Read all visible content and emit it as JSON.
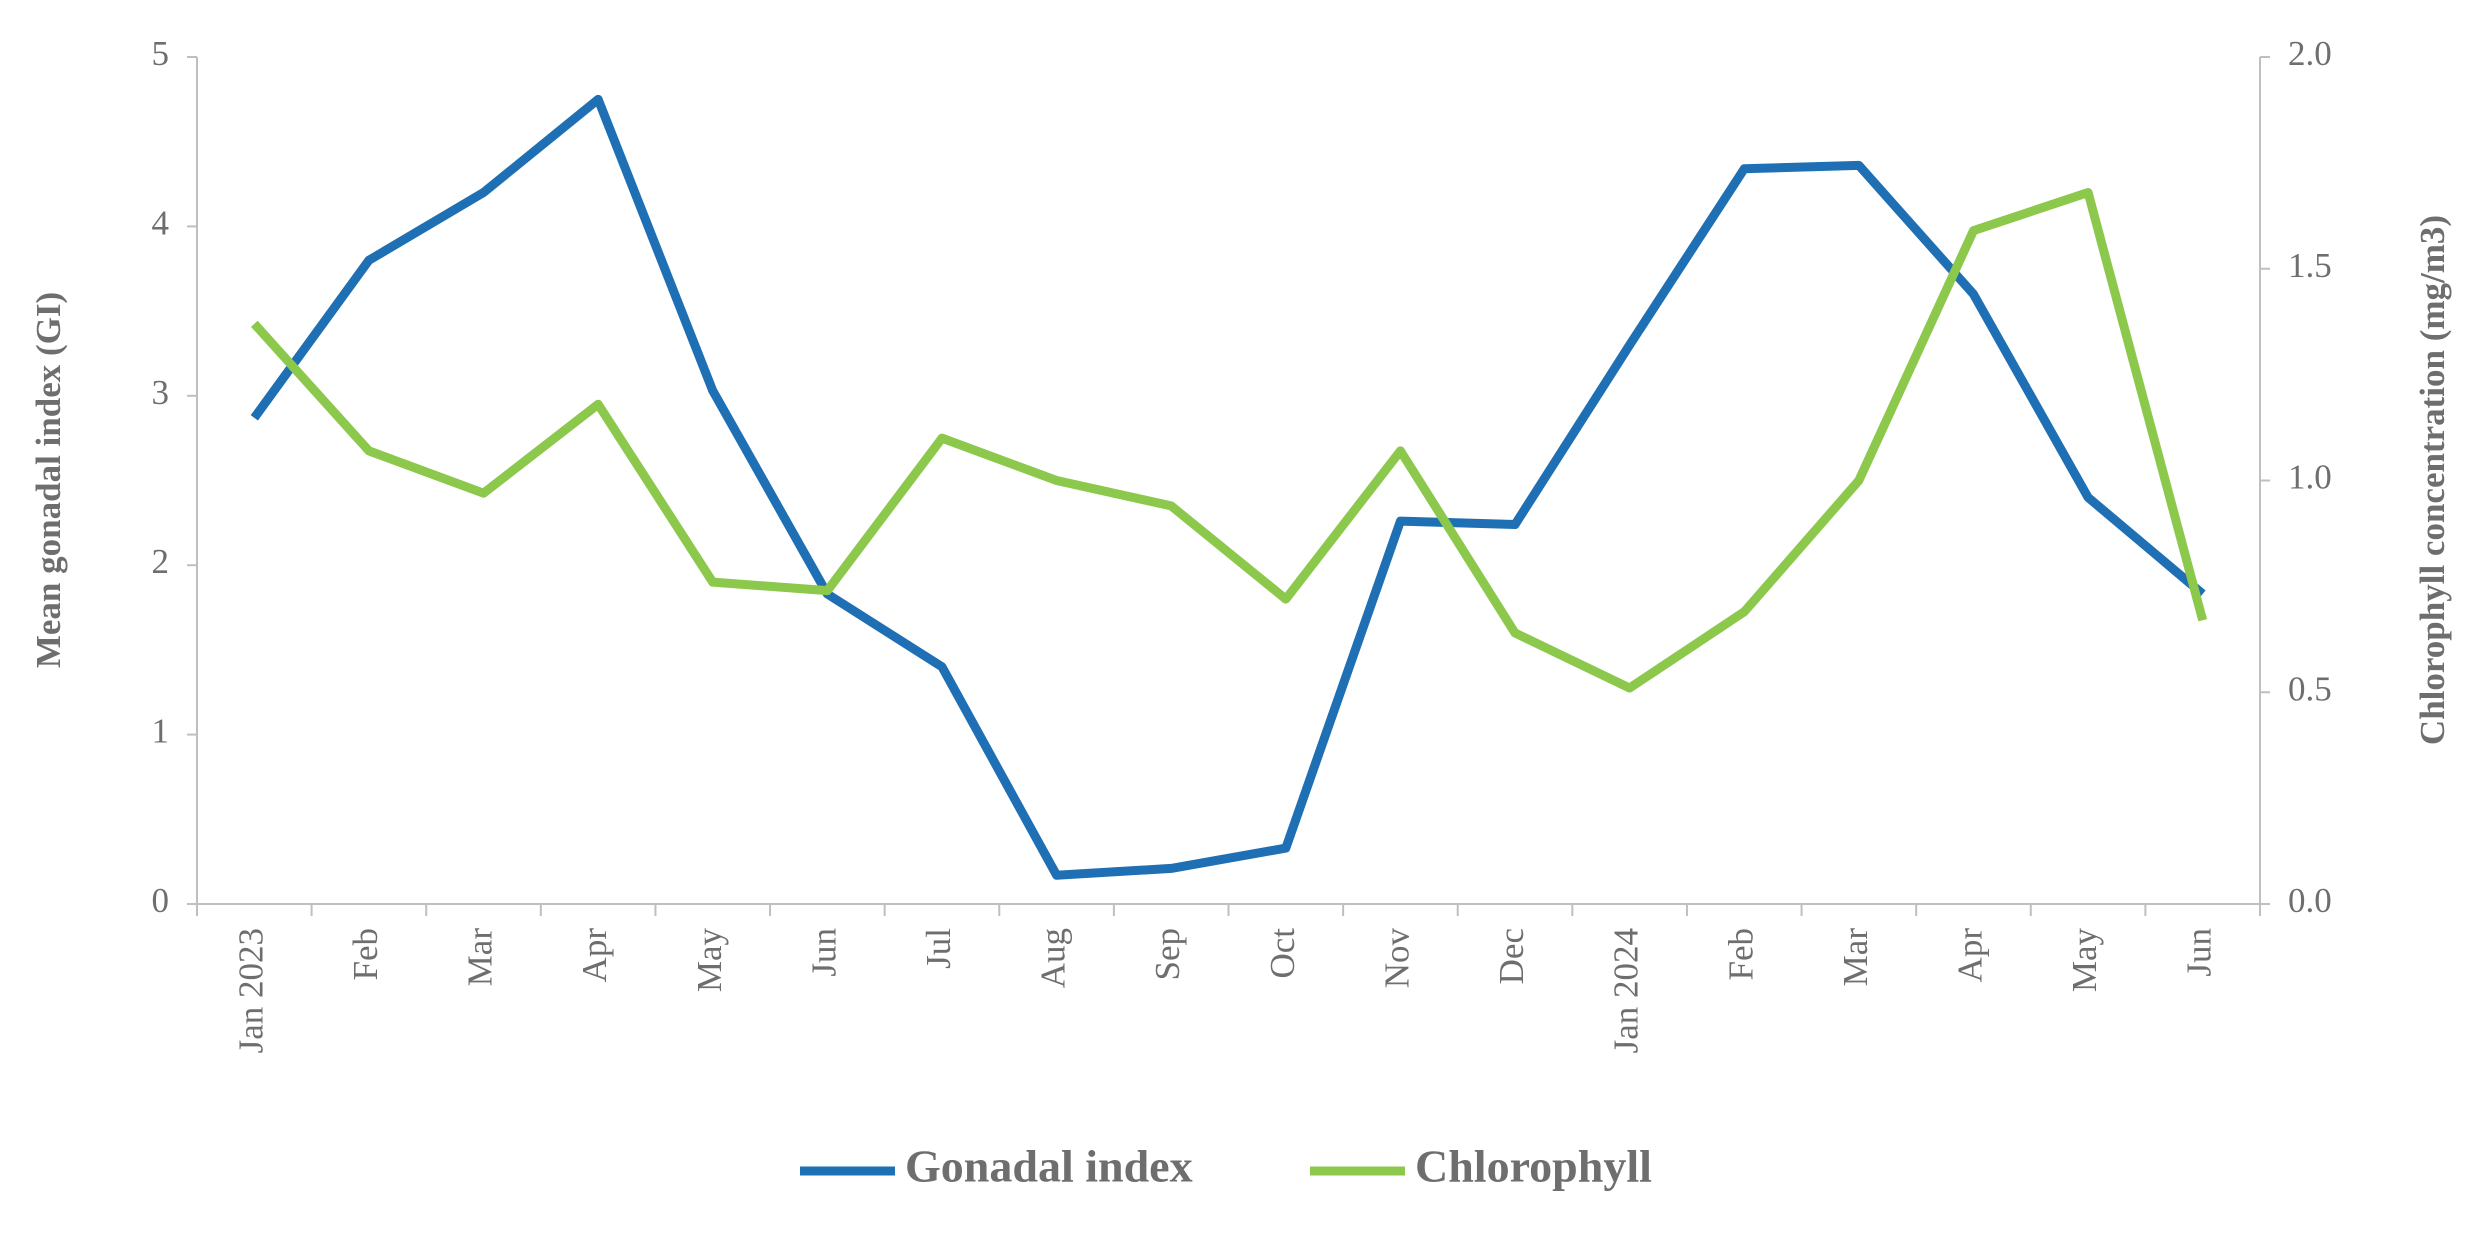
{
  "chart_data": {
    "type": "line",
    "y_label": "Mean gonadal index (GI)",
    "y2_label": "Chlorophyll concentration (mg/m3)",
    "categories": [
      "Jan 2023",
      "Feb",
      "Mar",
      "Apr",
      "May",
      "Jun",
      "Jul",
      "Aug",
      "Sep",
      "Oct",
      "Nov",
      "Dec",
      "Jan 2024",
      "Feb",
      "Mar",
      "Apr",
      "May",
      "Jun"
    ],
    "series": [
      {
        "name": "Gonadal index",
        "color": "#1f6fb4",
        "values": [
          2.87,
          3.8,
          4.2,
          4.75,
          3.03,
          1.83,
          1.4,
          0.17,
          0.21,
          0.33,
          2.26,
          2.24,
          3.3,
          4.34,
          4.36,
          3.6,
          2.4,
          1.83
        ]
      },
      {
        "name": "Chlorophyll",
        "color": "#8cc84b",
        "axis": "y2",
        "values": [
          1.37,
          1.07,
          0.97,
          1.18,
          0.76,
          0.74,
          1.1,
          1.0,
          0.94,
          0.72,
          1.07,
          0.64,
          0.51,
          0.69,
          1.0,
          1.59,
          1.68,
          0.67
        ]
      }
    ],
    "ylim": [
      0,
      5
    ],
    "yticks": [
      0,
      1,
      2,
      3,
      4,
      5
    ],
    "y2lim": [
      0,
      2
    ],
    "y2ticks": [
      {
        "value": 0,
        "label": "0.0"
      },
      {
        "value": 0.5,
        "label": "0.5"
      },
      {
        "value": 1,
        "label": "1.0"
      },
      {
        "value": 1.5,
        "label": "1.5"
      },
      {
        "value": 2,
        "label": "2.0"
      }
    ],
    "grid": false,
    "legend": "bottom"
  }
}
